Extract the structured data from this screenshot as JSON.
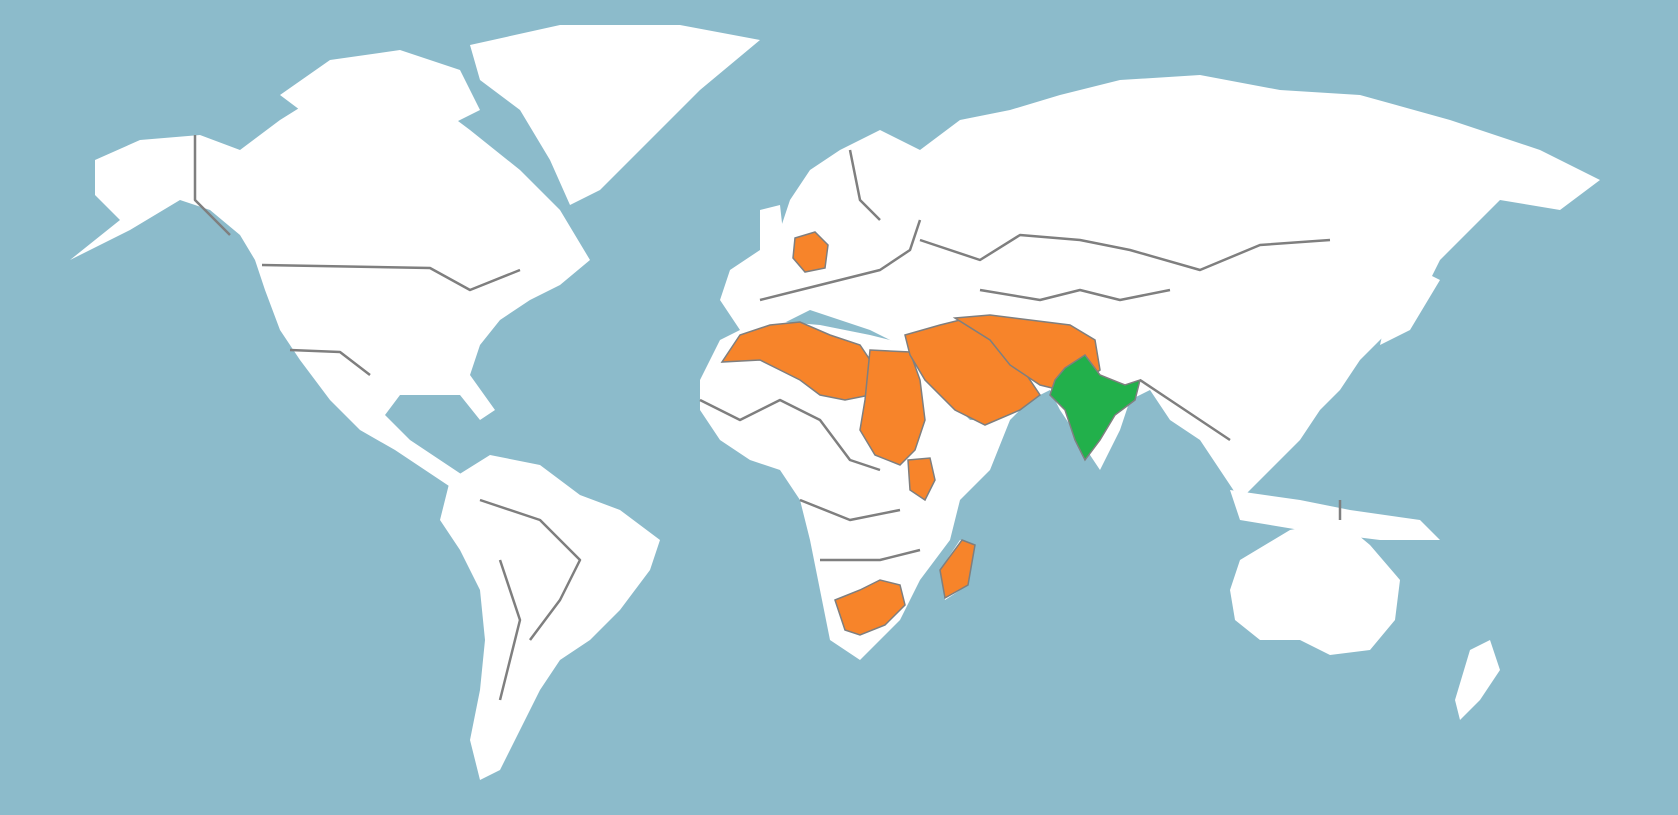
{
  "map": {
    "colors": {
      "ocean": "#8CBBCB",
      "land": "#FFFFFF",
      "border": "#7F7F7F",
      "highlight_primary": "#22B04B",
      "highlight_secondary": "#F7842A"
    }
  }
}
